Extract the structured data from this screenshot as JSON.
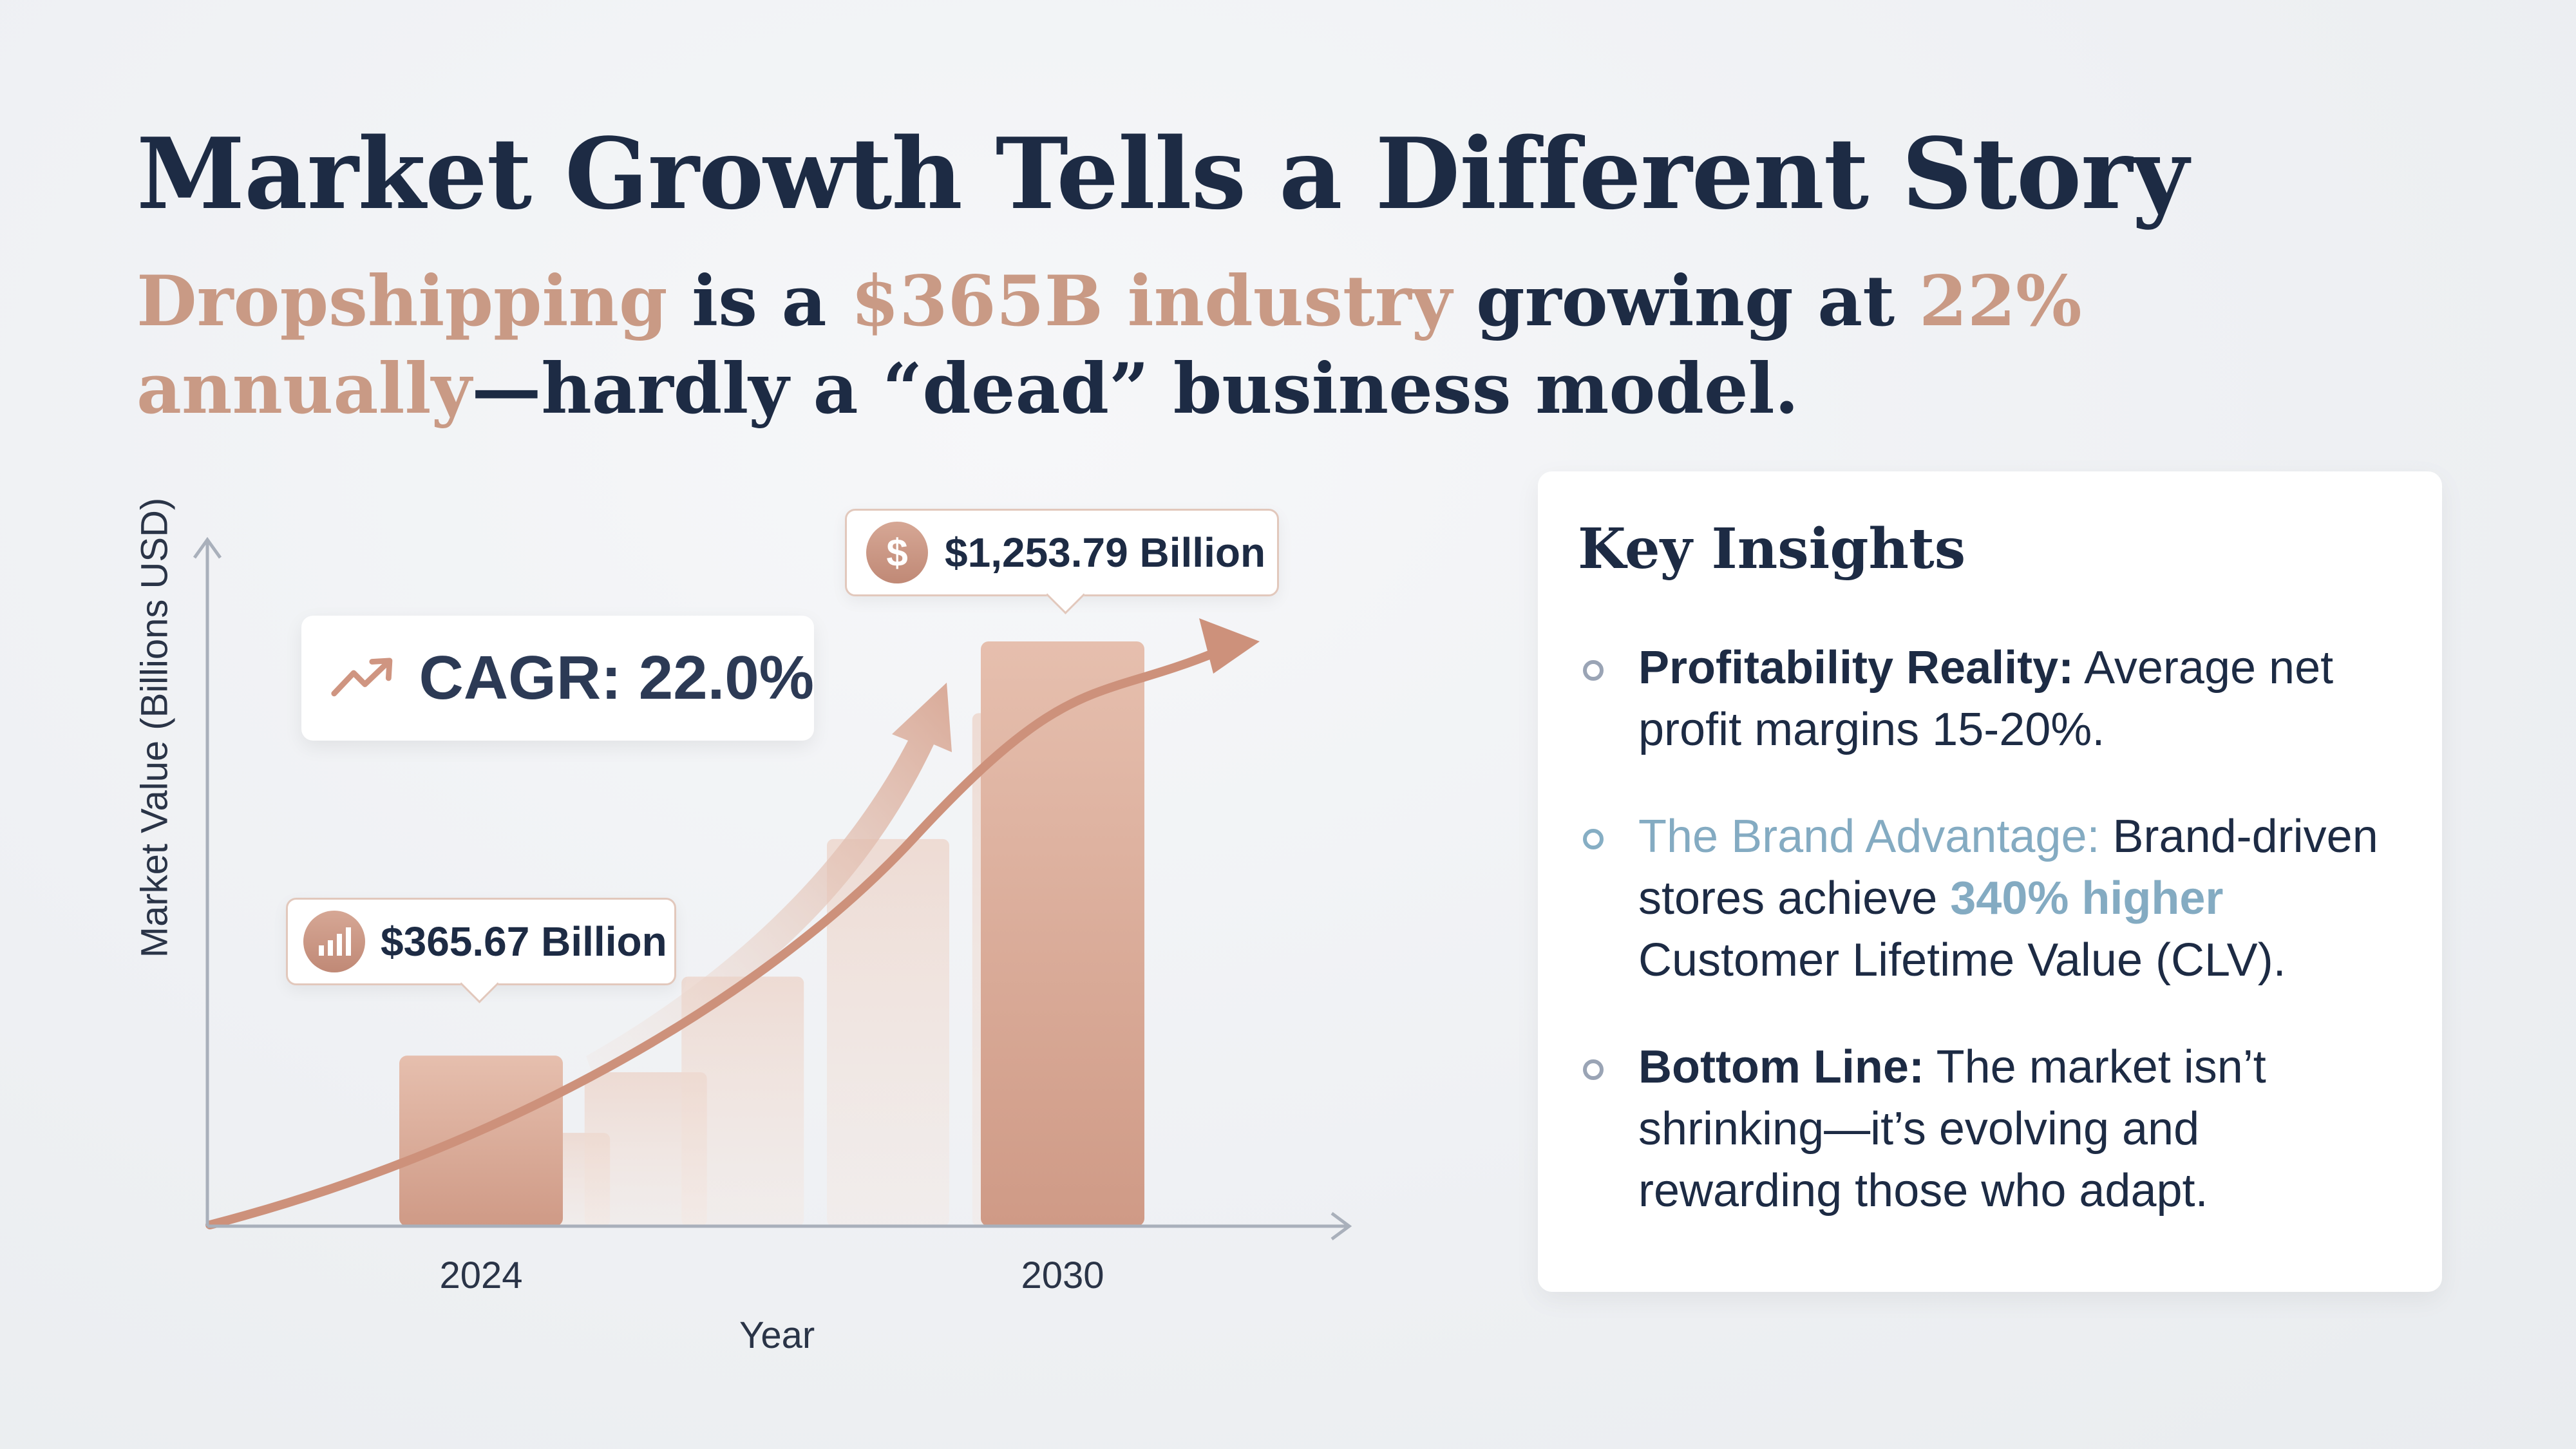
{
  "header": {
    "title": "Market Growth Tells a Different Story",
    "subtitle_parts": {
      "p1": "Dropshipping",
      "p2": " is a ",
      "p3": "$365B industry",
      "p4": " growing at ",
      "p5": "22% annually",
      "p6": "—hardly a “dead” business model."
    }
  },
  "colors": {
    "accent": "#c99a85",
    "bar": "#d9a58f",
    "navy": "#1d2b44",
    "blue": "#84abc2"
  },
  "chart_data": {
    "type": "bar",
    "title": "",
    "xlabel": "Year",
    "ylabel": "Market Value (Billions USD)",
    "categories": [
      "2024",
      "2030"
    ],
    "values": [
      365.67,
      1253.79
    ],
    "value_labels": [
      "$365.67 Billion",
      "$1,253.79 Billion"
    ],
    "ylim": [
      0,
      1400
    ],
    "cagr_label": "CAGR: 22.0%",
    "cagr": 22.0,
    "decorative_bars": [
      {
        "year_offset": 0.5,
        "value": 200
      },
      {
        "year_offset": 1.5,
        "value": 330
      },
      {
        "year_offset": 2.5,
        "value": 535
      },
      {
        "year_offset": 4.0,
        "value": 830
      },
      {
        "year_offset": 5.5,
        "value": 1100
      }
    ]
  },
  "insights": {
    "title": "Key Insights",
    "items": [
      {
        "label": "Profitability Reality:",
        "text": " Average net profit margins 15-20%."
      },
      {
        "label": "The Brand Advantage:",
        "text1": " Brand-driven stores achieve ",
        "highlight": "340% higher",
        "text2": " Customer Lifetime Value (CLV)."
      },
      {
        "label": "Bottom Line:",
        "text": " The market isn’t shrinking—it’s evolving and rewarding those who adapt."
      }
    ]
  },
  "icons": {
    "trend": "trending-up-icon",
    "dollar": "dollar-icon",
    "bars": "bar-signal-icon"
  }
}
